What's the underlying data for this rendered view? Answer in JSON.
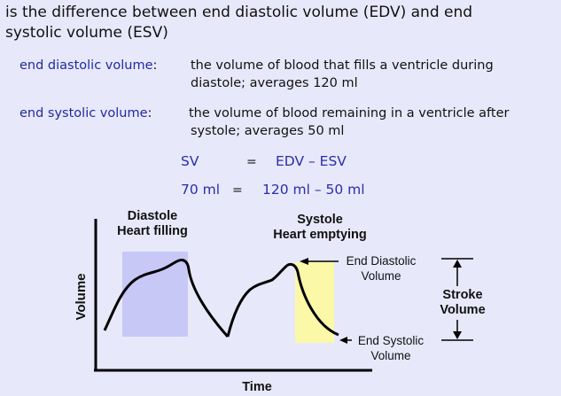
{
  "intro": {
    "line1": "is the difference between end diastolic volume (EDV) and end",
    "line2": "systolic volume (ESV)"
  },
  "definitions": [
    {
      "term": "end diastolic volume",
      "colon": ":",
      "line1": "the volume of blood that fills a ventricle during",
      "line2": "diastole; averages 120 ml"
    },
    {
      "term": "end systolic volume",
      "colon": ":",
      "line1": "the volume of blood remaining in a ventricle after",
      "line2": "systole; averages 50 ml"
    }
  ],
  "equation": {
    "row1": {
      "left": "SV",
      "op": "=",
      "right": "EDV – ESV"
    },
    "row2": {
      "left": "70 ml",
      "op": "=",
      "right": "120 ml – 50 ml"
    }
  },
  "figure": {
    "diastole_label": {
      "line1": "Diastole",
      "line2": "Heart filling"
    },
    "systole_label": {
      "line1": "Systole",
      "line2": "Heart emptying"
    },
    "edv_label": {
      "line1": "End Diastolic",
      "line2": "Volume"
    },
    "esv_label": {
      "line1": "End Systolic",
      "line2": "Volume"
    },
    "stroke_label": {
      "line1": "Stroke",
      "line2": "Volume"
    },
    "y_axis_label": "Volume",
    "x_axis_label": "Time",
    "colors": {
      "diastole_shade": "#c8c8f7",
      "systole_shade": "#fbf8a8",
      "curve": "#000000"
    }
  }
}
